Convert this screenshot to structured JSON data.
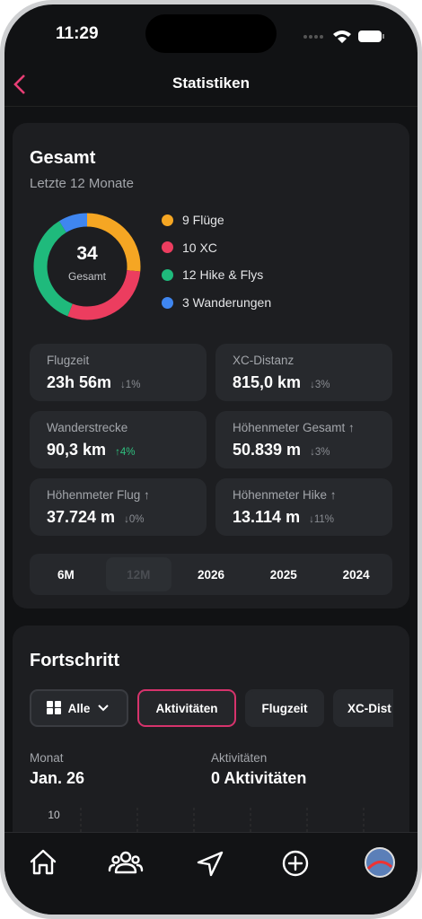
{
  "status_bar": {
    "time": "11:29"
  },
  "header": {
    "title": "Statistiken"
  },
  "overview": {
    "title": "Gesamt",
    "subtitle": "Letzte 12 Monate",
    "donut": {
      "total": 34,
      "total_label": "Gesamt",
      "segments": [
        {
          "label": "9 Flüge",
          "value": 9,
          "color": "#f5a623"
        },
        {
          "label": "10 XC",
          "value": 10,
          "color": "#ec3d5f"
        },
        {
          "label": "12 Hike & Flys",
          "value": 12,
          "color": "#1fba7c"
        },
        {
          "label": "3 Wanderungen",
          "value": 3,
          "color": "#3f86f0"
        }
      ]
    },
    "tiles": [
      {
        "label": "Flugzeit",
        "value": "23h 56m",
        "delta": "↓1%",
        "delta_color": "#8a8d93"
      },
      {
        "label": "XC-Distanz",
        "value": "815,0 km",
        "delta": "↓3%",
        "delta_color": "#8a8d93"
      },
      {
        "label": "Wanderstrecke",
        "value": "90,3 km",
        "delta": "↑4%",
        "delta_color": "#2fc07f"
      },
      {
        "label": "Höhenmeter Gesamt ↑",
        "value": "50.839 m",
        "delta": "↓3%",
        "delta_color": "#8a8d93"
      },
      {
        "label": "Höhenmeter Flug ↑",
        "value": "37.724 m",
        "delta": "↓0%",
        "delta_color": "#8a8d93"
      },
      {
        "label": "Höhenmeter Hike ↑",
        "value": "13.114 m",
        "delta": "↓11%",
        "delta_color": "#8a8d93"
      }
    ],
    "periods": [
      "6M",
      "12M",
      "2026",
      "2025",
      "2024"
    ],
    "selected_period": 1
  },
  "progress": {
    "title": "Fortschritt",
    "filters": [
      "Alle",
      "Aktivitäten",
      "Flugzeit",
      "XC-Dist"
    ],
    "selected_filter": 1,
    "month_label": "Monat",
    "month": "Jan. 26",
    "metric_label": "Aktivitäten",
    "metric": "0 Aktivitäten",
    "chart": {
      "yticks": [
        10
      ]
    }
  }
}
